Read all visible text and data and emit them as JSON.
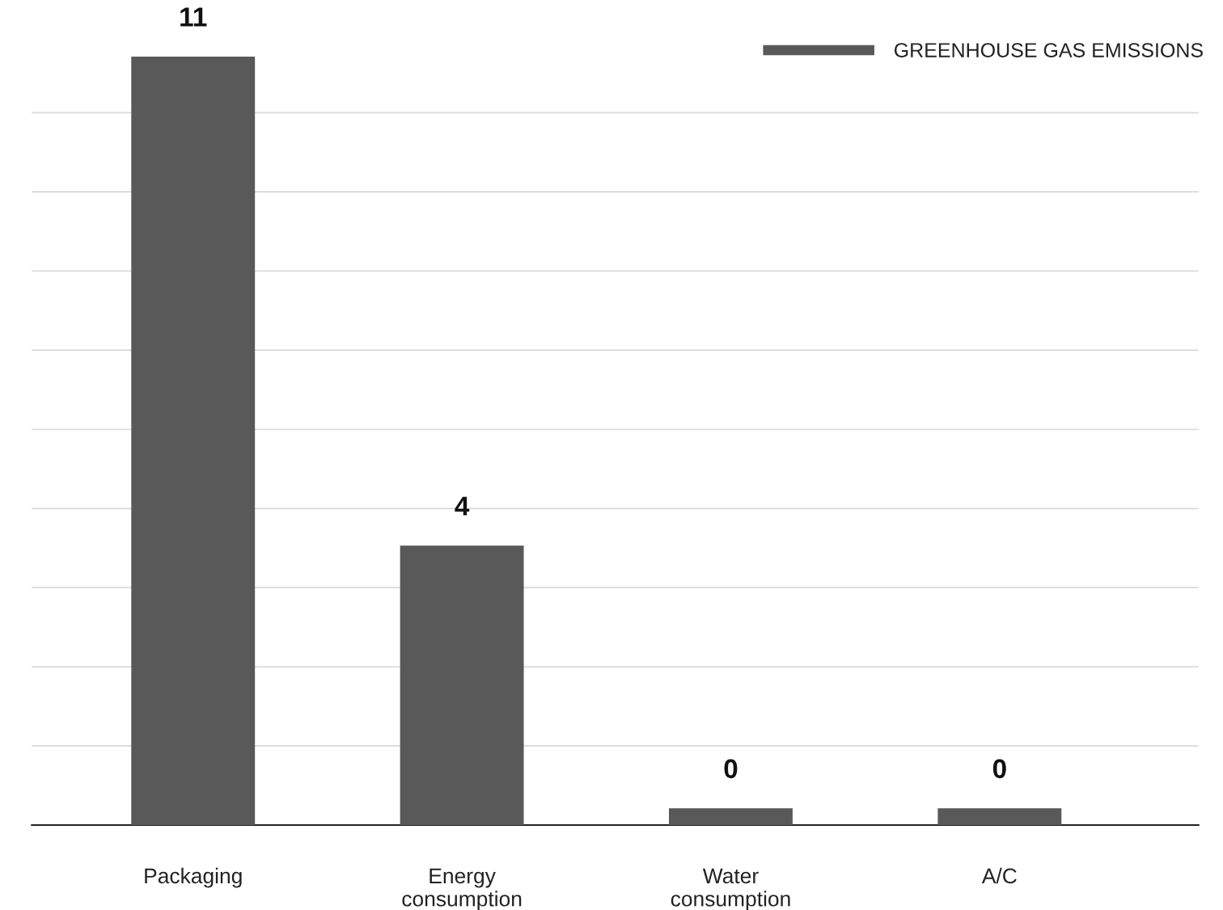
{
  "chart_data": {
    "type": "bar",
    "categories": [
      "Packaging",
      "Energy\nconsumption",
      "Water\nconsumption",
      "A/C"
    ],
    "series": [
      {
        "name": "GREENHOUSE GAS EMISSIONS",
        "color": "#595959",
        "values": [
          11,
          4,
          0.24,
          0.24
        ],
        "value_labels": [
          "11",
          "4",
          "0",
          "0"
        ]
      }
    ],
    "grid": "y",
    "legend": "top right"
  }
}
